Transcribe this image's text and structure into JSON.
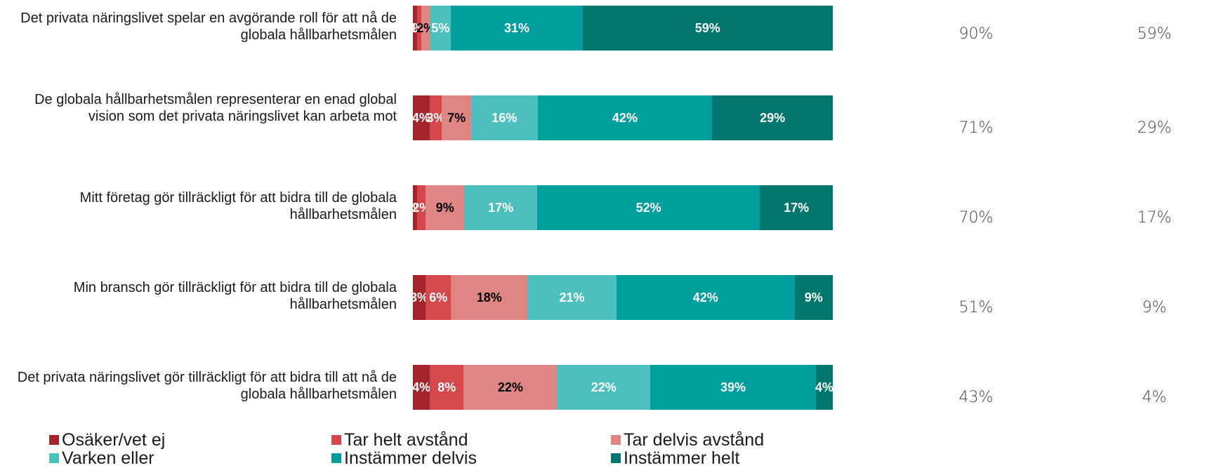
{
  "chart_data": {
    "type": "bar",
    "orientation": "horizontal-stacked-100",
    "categories": [
      "Det privata näringslivet spelar en avgörande roll för att nå de globala hållbarhetsmålen",
      "De globala hållbarhetsmålen representerar en enad global vision som det privata näringslivet kan arbeta mot",
      "Mitt företag gör tillräckligt för att bidra till de globala hållbarhetsmålen",
      "Min bransch gör tillräckligt för att bidra till de globala hållbarhetsmålen",
      "Det privata näringslivet gör tillräckligt för att bidra till att nå de globala hållbarhetsmålen"
    ],
    "series": [
      {
        "name": "Osäker/vet ej",
        "color": "#a4262c",
        "label_color": "#ffffff",
        "values": [
          1,
          4,
          1,
          3,
          4
        ],
        "labels": [
          "1%",
          "4%",
          "1%",
          "3%",
          "4%"
        ]
      },
      {
        "name": "Tar helt avstånd",
        "color": "#d5474a",
        "label_color": "#ffffff",
        "values": [
          1,
          3,
          2,
          6,
          8
        ],
        "labels": [
          "1%",
          "3%",
          "2%",
          "6%",
          "8%"
        ]
      },
      {
        "name": "Tar delvis avstånd",
        "color": "#df8583",
        "label_color": "#000000",
        "values": [
          2,
          7,
          9,
          18,
          22
        ],
        "labels": [
          "2%",
          "7%",
          "9%",
          "18%",
          "22%"
        ]
      },
      {
        "name": "Varken eller",
        "color": "#4dbfbd",
        "label_color": "#ffffff",
        "values": [
          5,
          16,
          17,
          21,
          22
        ],
        "labels": [
          "5%",
          "16%",
          "17%",
          "21%",
          "22%"
        ]
      },
      {
        "name": "Instämmer delvis",
        "color": "#009e9c",
        "label_color": "#ffffff",
        "values": [
          31,
          42,
          52,
          42,
          39
        ],
        "labels": [
          "31%",
          "42%",
          "52%",
          "42%",
          "39%"
        ]
      },
      {
        "name": "Instämmer helt",
        "color": "#00766f",
        "label_color": "#ffffff",
        "values": [
          59,
          29,
          17,
          9,
          4
        ],
        "labels": [
          "59%",
          "29%",
          "17%",
          "9%",
          "4%"
        ]
      }
    ],
    "extra_columns": [
      {
        "values": [
          "90%",
          "71%",
          "70%",
          "51%",
          "43%"
        ]
      },
      {
        "values": [
          "59%",
          "29%",
          "17%",
          "9%",
          "4%"
        ]
      }
    ],
    "legend_position": "bottom",
    "grid": false
  }
}
